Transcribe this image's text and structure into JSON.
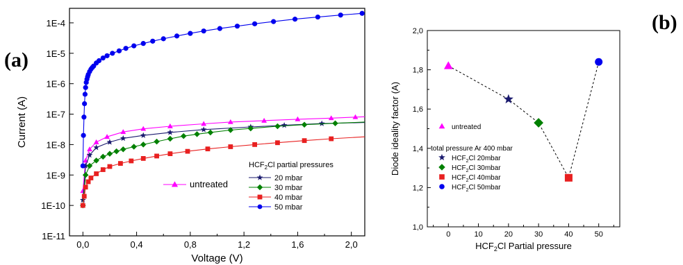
{
  "chart_data": [
    {
      "type": "line",
      "panel_label": "(a)",
      "xlabel": "Voltage (V)",
      "ylabel": "Current (A)",
      "xlim": [
        -0.1,
        2.1
      ],
      "ylim": [
        1e-11,
        0.0003
      ],
      "y_scale": "log",
      "x_ticks": [
        "0,0",
        "0,4",
        "0,8",
        "1,2",
        "1,6",
        "2,0"
      ],
      "y_ticks": [
        "1E-11",
        "1E-10",
        "1E-9",
        "1E-8",
        "1E-7",
        "1E-6",
        "1E-5",
        "1E-4"
      ],
      "grid": false,
      "legend_title": "HCF2Cl partial pressures",
      "legend_title_parts": [
        "HCF",
        "2",
        "Cl partial pressures"
      ],
      "legend_position": "bottom-right",
      "series": [
        {
          "name": "untreated",
          "color": "#ff00ff",
          "marker": "triangle",
          "x": [
            0.0,
            0.02,
            0.05,
            0.1,
            0.18,
            0.3,
            0.45,
            0.65,
            0.9,
            1.1,
            1.35,
            1.6,
            1.85,
            2.03,
            2.1
          ],
          "y": [
            3e-10,
            3e-09,
            7e-09,
            1.2e-08,
            1.8e-08,
            2.6e-08,
            3.3e-08,
            4e-08,
            4.8e-08,
            5.5e-08,
            6.1e-08,
            6.8e-08,
            7.4e-08,
            8e-08,
            8.2e-08
          ]
        },
        {
          "name": "20 mbar",
          "color": "#1a1a6e",
          "marker": "star",
          "x": [
            0.0,
            0.02,
            0.05,
            0.1,
            0.2,
            0.3,
            0.45,
            0.65,
            0.9,
            1.25,
            1.5,
            1.78,
            2.1
          ],
          "y": [
            1.5e-10,
            2e-09,
            4.5e-09,
            8e-09,
            1.2e-08,
            1.6e-08,
            2e-08,
            2.5e-08,
            3.1e-08,
            3.8e-08,
            4.3e-08,
            4.9e-08,
            5.3e-08
          ]
        },
        {
          "name": "30 mbar",
          "color": "#008000",
          "marker": "diamond",
          "x": [
            0.0,
            0.02,
            0.05,
            0.1,
            0.15,
            0.2,
            0.25,
            0.3,
            0.38,
            0.45,
            0.55,
            0.65,
            0.75,
            0.85,
            0.95,
            1.1,
            1.25,
            1.45,
            1.65,
            1.88,
            2.1
          ],
          "y": [
            1e-10,
            1e-09,
            2e-09,
            3e-09,
            4e-09,
            5e-09,
            6e-09,
            7e-09,
            8.5e-09,
            1e-08,
            1.25e-08,
            1.55e-08,
            1.9e-08,
            2.2e-08,
            2.5e-08,
            3e-08,
            3.4e-08,
            4e-08,
            4.5e-08,
            5e-08,
            5.5e-08
          ]
        },
        {
          "name": "40 mbar",
          "color": "#e82020",
          "marker": "square",
          "x": [
            0.0,
            0.01,
            0.02,
            0.04,
            0.06,
            0.1,
            0.15,
            0.2,
            0.28,
            0.36,
            0.45,
            0.55,
            0.65,
            0.78,
            0.93,
            1.1,
            1.28,
            1.45,
            1.65,
            1.85,
            2.1
          ],
          "y": [
            1e-10,
            2e-10,
            4e-10,
            6e-10,
            8e-10,
            1.1e-09,
            1.5e-09,
            1.9e-09,
            2.4e-09,
            2.9e-09,
            3.5e-09,
            4.2e-09,
            5e-09,
            6e-09,
            7.2e-09,
            8.5e-09,
            1e-08,
            1.15e-08,
            1.35e-08,
            1.55e-08,
            1.8e-08
          ]
        },
        {
          "name": "50 mbar",
          "color": "#0000ee",
          "marker": "circle",
          "x": [
            0.0,
            0.004,
            0.008,
            0.012,
            0.016,
            0.02,
            0.025,
            0.03,
            0.035,
            0.04,
            0.05,
            0.06,
            0.07,
            0.08,
            0.1,
            0.12,
            0.15,
            0.18,
            0.22,
            0.27,
            0.32,
            0.38,
            0.45,
            0.52,
            0.6,
            0.7,
            0.8,
            0.9,
            1.02,
            1.15,
            1.28,
            1.42,
            1.58,
            1.75,
            1.92,
            2.08
          ],
          "y": [
            2e-09,
            2e-08,
            8e-08,
            2.2e-07,
            4.5e-07,
            7.5e-07,
            1.1e-06,
            1.4e-06,
            1.7e-06,
            2e-06,
            2.5e-06,
            3e-06,
            3.4e-06,
            3.8e-06,
            4.8e-06,
            5.7e-06,
            7e-06,
            8.3e-06,
            1e-05,
            1.2e-05,
            1.45e-05,
            1.75e-05,
            2.1e-05,
            2.5e-05,
            3e-05,
            3.7e-05,
            4.5e-05,
            5.4e-05,
            6.5e-05,
            7.8e-05,
            9.3e-05,
            0.00011,
            0.000132,
            0.000155,
            0.00018,
            0.000205
          ]
        }
      ]
    },
    {
      "type": "scatter",
      "panel_label": "(b)",
      "xlabel": "HCF2Cl Partial pressure",
      "xlabel_parts": [
        "HCF",
        "2",
        "Cl Partial pressure"
      ],
      "ylabel": "Diode ideality factor (A)",
      "xlim": [
        -7,
        57
      ],
      "ylim": [
        1.0,
        2.0
      ],
      "x_ticks": [
        "0",
        "10",
        "20",
        "30",
        "40",
        "50"
      ],
      "y_ticks": [
        "1,0",
        "1,2",
        "1,4",
        "1,6",
        "1,8",
        "2,0"
      ],
      "grid": false,
      "connector": "dashed",
      "legend_note": "total pressure Ar 400 mbar",
      "points": [
        {
          "name": "untreated",
          "x": 0,
          "y": 1.82,
          "color": "#ff00ff",
          "marker": "triangle",
          "legend_parts": [
            "untreated"
          ]
        },
        {
          "name": "HCF2Cl 20mbar",
          "x": 20,
          "y": 1.65,
          "color": "#1a1a6e",
          "marker": "star",
          "legend_parts": [
            "HCF",
            "2",
            "Cl 20mbar"
          ]
        },
        {
          "name": "HCF2Cl 30mbar",
          "x": 30,
          "y": 1.53,
          "color": "#008000",
          "marker": "diamond",
          "legend_parts": [
            "HCF",
            "2",
            "Cl 30mbar"
          ]
        },
        {
          "name": "HCF2Cl 40mbar",
          "x": 40,
          "y": 1.25,
          "color": "#e82020",
          "marker": "square",
          "legend_parts": [
            "HCF",
            "2",
            "Cl 40mbar"
          ]
        },
        {
          "name": "HCF2Cl 50mbar",
          "x": 50,
          "y": 1.84,
          "color": "#0000ee",
          "marker": "circle",
          "legend_parts": [
            "HCF",
            "2",
            "Cl 50mbar"
          ]
        }
      ]
    }
  ]
}
